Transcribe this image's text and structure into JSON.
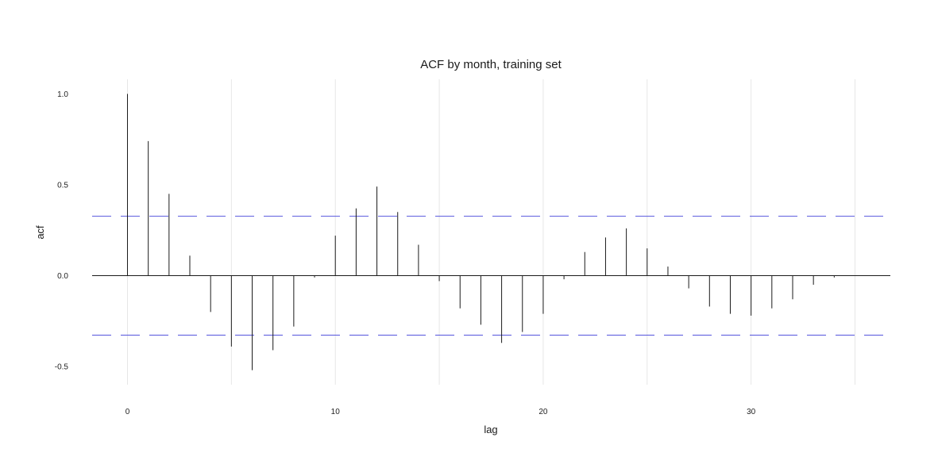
{
  "chart_data": {
    "type": "bar",
    "subtype": "acf-stem",
    "title": "ACF by month, training set",
    "xlabel": "lag",
    "ylabel": "acf",
    "x": [
      0,
      1,
      2,
      3,
      4,
      5,
      6,
      7,
      8,
      9,
      10,
      11,
      12,
      13,
      14,
      15,
      16,
      17,
      18,
      19,
      20,
      21,
      22,
      23,
      24,
      25,
      26,
      27,
      28,
      29,
      30,
      31,
      32,
      33,
      34
    ],
    "values": [
      1.0,
      0.74,
      0.45,
      0.11,
      -0.2,
      -0.39,
      -0.52,
      -0.41,
      -0.28,
      -0.01,
      0.22,
      0.37,
      0.49,
      0.35,
      0.17,
      -0.03,
      -0.18,
      -0.27,
      -0.37,
      -0.31,
      -0.21,
      -0.02,
      0.13,
      0.21,
      0.26,
      0.15,
      0.05,
      -0.07,
      -0.17,
      -0.21,
      -0.22,
      -0.18,
      -0.13,
      -0.05,
      -0.01
    ],
    "confidence_bound": 0.327,
    "xlim": [
      -1.7,
      36.7
    ],
    "ylim": [
      -0.6,
      1.08
    ],
    "x_ticks": [
      0,
      10,
      20,
      30
    ],
    "x_tick_labels": [
      "0",
      "10",
      "20",
      "30"
    ],
    "y_ticks": [
      -0.5,
      0.0,
      0.5,
      1.0
    ],
    "y_tick_labels": [
      "-0.5",
      "0.0",
      "0.5",
      "1.0"
    ],
    "x_gridlines": [
      0,
      5,
      10,
      15,
      20,
      25,
      30,
      35
    ],
    "grid": true,
    "colors": {
      "stem": "#1a1a1a",
      "zero_line": "#1a1a1a",
      "bound": "#5555dd",
      "grid": "#e6e6e6"
    }
  }
}
